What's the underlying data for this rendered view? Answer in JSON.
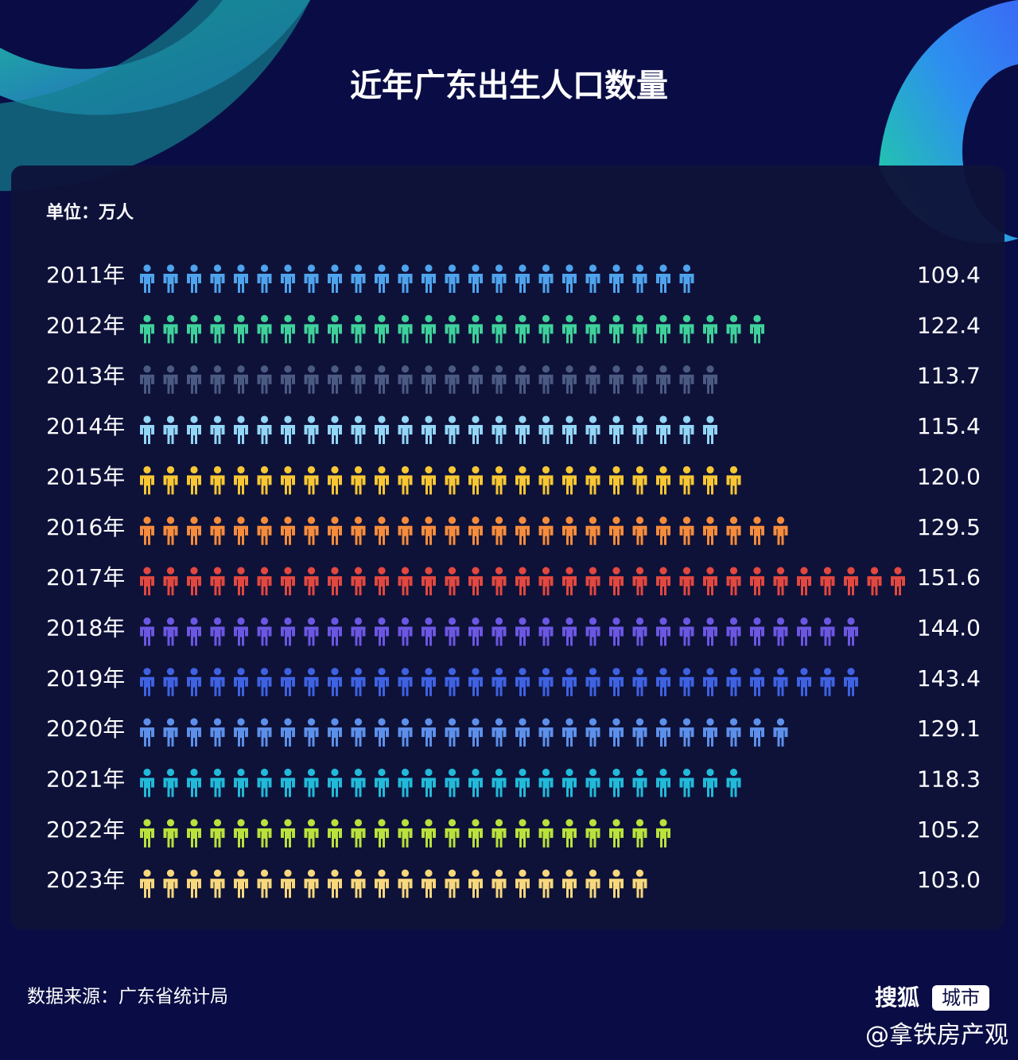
{
  "chart_data": {
    "type": "pictogram",
    "title": "近年广东出生人口数量",
    "unit_label": "单位：万人",
    "categories": [
      "2011年",
      "2012年",
      "2013年",
      "2014年",
      "2015年",
      "2016年",
      "2017年",
      "2018年",
      "2019年",
      "2020年",
      "2021年",
      "2022年",
      "2023年"
    ],
    "values": [
      109.4,
      122.4,
      113.7,
      115.4,
      120.0,
      129.5,
      151.6,
      144.0,
      143.4,
      129.1,
      118.3,
      105.2,
      103.0
    ],
    "value_labels": [
      "109.4",
      "122.4",
      "113.7",
      "115.4",
      "120.0",
      "129.5",
      "151.6",
      "144.0",
      "143.4",
      "129.1",
      "118.3",
      "105.2",
      "103.0"
    ],
    "colors": [
      "#4fa3ec",
      "#3fd19b",
      "#4b5a82",
      "#93d6f6",
      "#f8c733",
      "#f68c3c",
      "#e2483f",
      "#6b57e2",
      "#3f62e2",
      "#5d90ea",
      "#22bad9",
      "#b9e23c",
      "#f8d87c"
    ],
    "source": "数据来源：广东省统计局",
    "brand": "搜狐",
    "brand_tag": "城市",
    "watermark": "@拿铁房产观"
  }
}
